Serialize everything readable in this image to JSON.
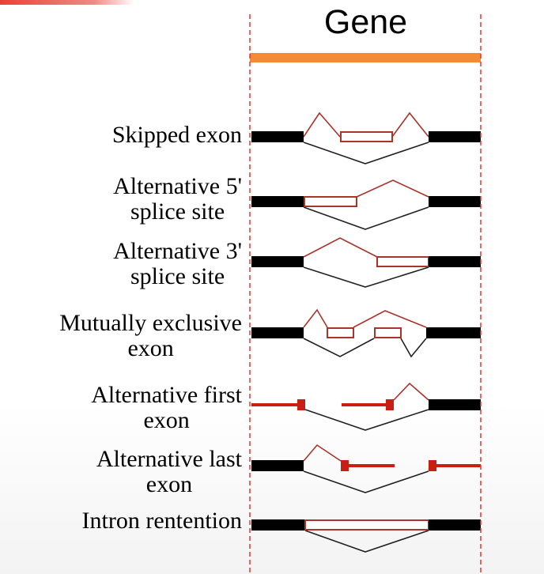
{
  "title": "Gene",
  "events": [
    {
      "id": "skipped-exon",
      "lines": [
        "Skipped exon"
      ]
    },
    {
      "id": "alt-5-splice-site",
      "lines": [
        "Alternative 5'",
        "splice site"
      ]
    },
    {
      "id": "alt-3-splice-site",
      "lines": [
        "Alternative 3'",
        "splice site"
      ]
    },
    {
      "id": "mutually-exclusive-exon",
      "lines": [
        "Mutually exclusive",
        "exon"
      ]
    },
    {
      "id": "alt-first-exon",
      "lines": [
        "Alternative first",
        "exon"
      ]
    },
    {
      "id": "alt-last-exon",
      "lines": [
        "Alternative last",
        "exon"
      ]
    },
    {
      "id": "intron-retention",
      "lines": [
        "Intron rentention"
      ]
    }
  ],
  "colors": {
    "gene_bar": "#f58a33",
    "boundary": "#e8352b",
    "constitutive_exon": "#000000",
    "alternative_exon": "#a8342a",
    "alternative_exon_fill": "#c81e14",
    "splice_line_upper": "#a8342a",
    "splice_line_lower": "#222222"
  }
}
